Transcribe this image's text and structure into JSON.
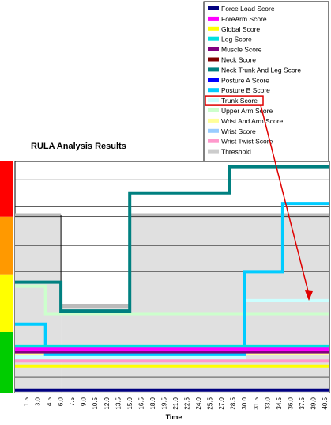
{
  "chart_data": {
    "type": "line",
    "title": "RULA Analysis Results",
    "xlabel": "Time",
    "ylabel": "",
    "x_ticks": [
      "1.5",
      "3.0",
      "4.5",
      "6.0",
      "7.5",
      "9.0",
      "10.5",
      "12.0",
      "13.5",
      "15.0",
      "16.5",
      "18.0",
      "19.5",
      "21.0",
      "22.5",
      "24.0",
      "25.5",
      "27.0",
      "28.5",
      "30.0",
      "31.5",
      "33.0",
      "34.5",
      "36.0",
      "37.5",
      "39.0",
      "40.5"
    ],
    "xlim": [
      0,
      41
    ],
    "ylim": [
      0,
      8.8
    ],
    "legend_position": "top-right",
    "risk_bands": [
      {
        "from": 0,
        "to": 2.3,
        "color": "#00cc00"
      },
      {
        "from": 2.3,
        "to": 4.5,
        "color": "#ffff00"
      },
      {
        "from": 4.5,
        "to": 6.7,
        "color": "#ff9900"
      },
      {
        "from": 6.7,
        "to": 8.8,
        "color": "#ff0000"
      }
    ],
    "threshold_shading": [
      {
        "x": [
          0,
          6
        ],
        "y": 6.75
      },
      {
        "x": [
          6,
          15
        ],
        "y": 3.3
      },
      {
        "x": [
          15,
          41
        ],
        "y": 6.75
      }
    ],
    "gridlines_y": [
      8.8,
      8.1,
      7.1,
      6.7,
      5.6,
      4.6,
      3.6,
      2.6,
      1.6,
      0.6
    ],
    "series": [
      {
        "name": "Force Load Score",
        "color": "#000080",
        "points": [
          [
            0,
            0.1
          ],
          [
            41,
            0.1
          ]
        ]
      },
      {
        "name": "ForeArm Score",
        "color": "#ff00ff",
        "points": [
          [
            0,
            1.65
          ],
          [
            41,
            1.65
          ]
        ]
      },
      {
        "name": "Global Score",
        "color": "#ffff00",
        "points": [
          [
            0,
            1.0
          ],
          [
            41,
            1.0
          ]
        ]
      },
      {
        "name": "Leg Score",
        "color": "#00e0e0",
        "points": [
          [
            0,
            1.75
          ],
          [
            41,
            1.75
          ]
        ]
      },
      {
        "name": "Muscle Score",
        "color": "#800080",
        "points": [
          [
            0,
            1.55
          ],
          [
            41,
            1.55
          ]
        ]
      },
      {
        "name": "Neck Score",
        "color": "#800000",
        "points": [
          [
            0,
            1.6
          ],
          [
            41,
            1.6
          ]
        ]
      },
      {
        "name": "Neck Trunk And Leg Score",
        "color": "#008080",
        "points": [
          [
            0,
            4.2
          ],
          [
            6,
            4.2
          ],
          [
            6,
            3.1
          ],
          [
            15,
            3.1
          ],
          [
            15,
            7.6
          ],
          [
            28,
            7.6
          ],
          [
            28,
            8.6
          ],
          [
            41,
            8.6
          ]
        ]
      },
      {
        "name": "Posture A Score",
        "color": "#0000ff",
        "points": [
          [
            0,
            1.7
          ],
          [
            41,
            1.7
          ]
        ]
      },
      {
        "name": "Posture B Score",
        "color": "#00ccff",
        "points": [
          [
            0,
            2.6
          ],
          [
            4,
            2.6
          ],
          [
            4,
            1.45
          ],
          [
            30,
            1.45
          ],
          [
            30,
            4.6
          ],
          [
            35,
            4.6
          ],
          [
            35,
            7.2
          ],
          [
            41,
            7.2
          ]
        ]
      },
      {
        "name": "Trunk Score",
        "color": "#ccffff",
        "points": [
          [
            0,
            1.35
          ],
          [
            30,
            1.35
          ],
          [
            30,
            3.5
          ],
          [
            41,
            3.5
          ]
        ]
      },
      {
        "name": "Upper Arm Score",
        "color": "#ccffcc",
        "points": [
          [
            0,
            4.05
          ],
          [
            4,
            4.05
          ],
          [
            4,
            3.0
          ],
          [
            41,
            3.0
          ]
        ]
      },
      {
        "name": "Wrist And Arm Score",
        "color": "#ffff99",
        "points": [
          [
            0,
            1.5
          ],
          [
            41,
            1.5
          ]
        ]
      },
      {
        "name": "Wrist Score",
        "color": "#99ccff",
        "points": [
          [
            0,
            1.5
          ],
          [
            41,
            1.5
          ]
        ]
      },
      {
        "name": "Wrist Twist Score",
        "color": "#ff99cc",
        "points": [
          [
            0,
            1.2
          ],
          [
            41,
            1.2
          ]
        ]
      },
      {
        "name": "Threshold",
        "color": "#cccccc",
        "points": []
      }
    ],
    "annotation": {
      "target": "Trunk Score",
      "color": "#e00000"
    }
  }
}
